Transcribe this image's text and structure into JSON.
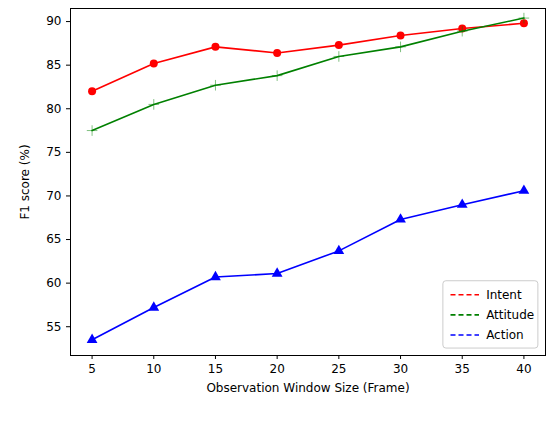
{
  "chart_data": {
    "type": "line",
    "x_label": "Observation Window Size (Frame)",
    "y_label": "F1 score (%)",
    "x": [
      5,
      10,
      15,
      20,
      25,
      30,
      35,
      40
    ],
    "series": [
      {
        "name": "Intent",
        "color": "#ff0000",
        "marker": "circle",
        "values": [
          82.0,
          85.2,
          87.1,
          86.4,
          87.3,
          88.4,
          89.2,
          89.8
        ]
      },
      {
        "name": "Attitude",
        "color": "#008000",
        "marker": "plus",
        "values": [
          77.5,
          80.5,
          82.7,
          83.8,
          86.0,
          87.1,
          88.9,
          90.4
        ]
      },
      {
        "name": "Action",
        "color": "#0000ff",
        "marker": "triangle",
        "values": [
          53.5,
          57.2,
          60.7,
          61.1,
          63.7,
          67.3,
          69.0,
          70.6
        ]
      }
    ],
    "xlim": [
      3.25,
      41.75
    ],
    "ylim": [
      51.7,
      91.5
    ],
    "xticks": [
      5,
      10,
      15,
      20,
      25,
      30,
      35,
      40
    ],
    "yticks": [
      55,
      60,
      65,
      70,
      75,
      80,
      85,
      90
    ],
    "grid": false,
    "legend": "lower right"
  }
}
